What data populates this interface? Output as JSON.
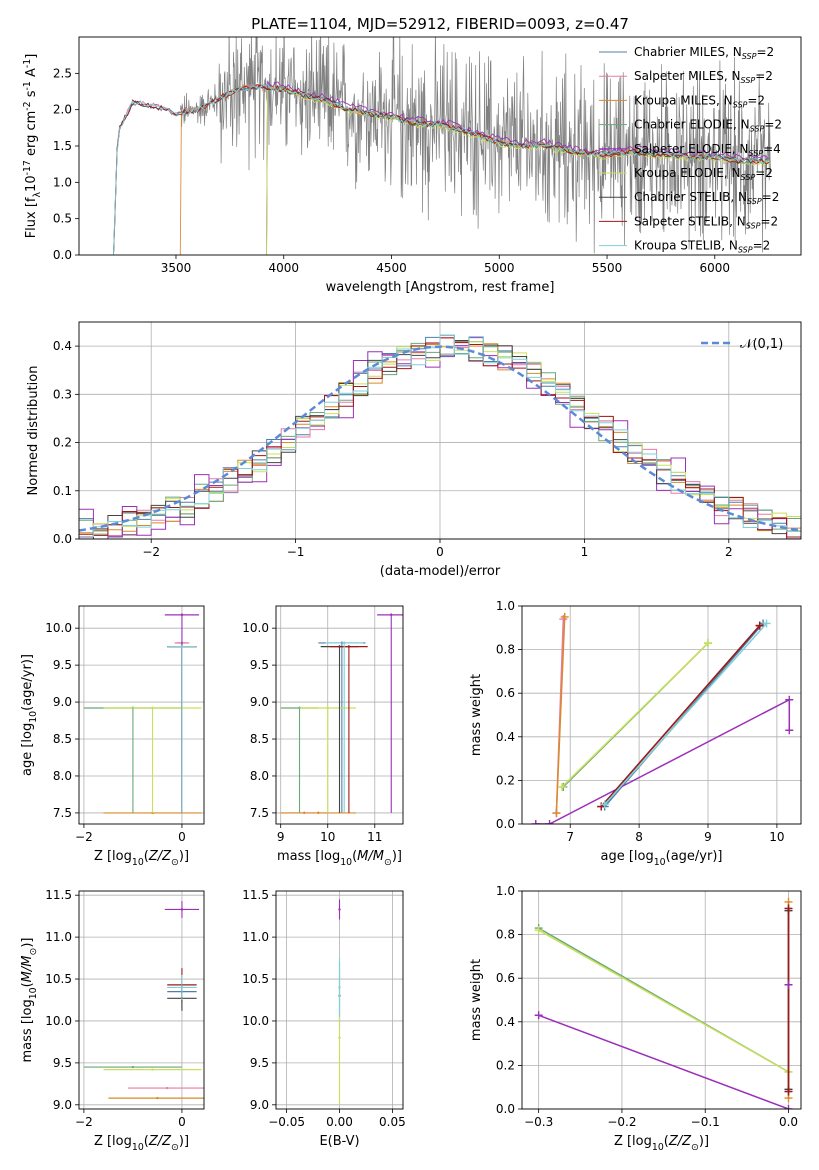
{
  "figure": {
    "title": "PLATE=1104, MJD=52912, FIBERID=0093, z=0.47"
  },
  "models": [
    {
      "name": "Chabrier MILES",
      "nssp": "2",
      "color": "#4f7fa8"
    },
    {
      "name": "Salpeter MILES",
      "nssp": "2",
      "color": "#e87aa8"
    },
    {
      "name": "Kroupa MILES",
      "nssp": "2",
      "color": "#d98a2a"
    },
    {
      "name": "Chabrier ELODIE",
      "nssp": "2",
      "color": "#6aa87a"
    },
    {
      "name": "Salpeter ELODIE",
      "nssp": "4",
      "color": "#9b30b8"
    },
    {
      "name": "Kroupa ELODIE",
      "nssp": "2",
      "color": "#c9e05a"
    },
    {
      "name": "Chabrier STELIB",
      "nssp": "2",
      "color": "#444444"
    },
    {
      "name": "Salpeter STELIB",
      "nssp": "2",
      "color": "#a01818"
    },
    {
      "name": "Kroupa STELIB",
      "nssp": "2",
      "color": "#7fd0d8"
    }
  ],
  "chart_data": [
    {
      "id": "spectrum",
      "type": "line",
      "xlabel": "wavelength [Angstrom, rest frame]",
      "ylabel": "Flux [f$_\\lambda$10$^{-17}$ erg cm$^{-2}$ s$^{-1}$ A$^{-1}$]",
      "xlim": [
        3050,
        6400
      ],
      "ylim": [
        0,
        3.0
      ],
      "xticks": [
        3500,
        4000,
        4500,
        5000,
        5500,
        6000
      ],
      "yticks": [
        0.0,
        0.5,
        1.0,
        1.5,
        2.0,
        2.5
      ],
      "legend": "top-right",
      "data_color": "#808080",
      "data_range": [
        3520,
        6260
      ],
      "model_start": [
        3210,
        3210,
        3520,
        3920,
        3920,
        3920,
        3210,
        3210,
        3210
      ],
      "continuum": {
        "x": [
          3210,
          3230,
          3300,
          3400,
          3500,
          3600,
          3700,
          3800,
          3900,
          4000,
          4100,
          4200,
          4300,
          4400,
          4500,
          4600,
          4700,
          4800,
          4900,
          5000,
          5100,
          5200,
          5300,
          5400,
          5500,
          5600,
          5700,
          5800,
          5900,
          6000,
          6100,
          6200,
          6260
        ],
        "y": [
          0.0,
          1.7,
          2.1,
          2.05,
          1.95,
          2.0,
          2.15,
          2.3,
          2.32,
          2.28,
          2.2,
          2.12,
          2.0,
          1.95,
          1.9,
          1.82,
          1.8,
          1.75,
          1.65,
          1.55,
          1.5,
          1.52,
          1.45,
          1.4,
          1.38,
          1.42,
          1.4,
          1.38,
          1.35,
          1.35,
          1.3,
          1.3,
          1.28
        ]
      }
    },
    {
      "id": "residuals",
      "type": "line",
      "xlabel": "(data-model)/error",
      "ylabel": "Normed distribution",
      "xlim": [
        -2.5,
        2.5
      ],
      "ylim": [
        0,
        0.45
      ],
      "xticks": [
        -2,
        -1,
        0,
        1,
        2
      ],
      "yticks": [
        0.0,
        0.1,
        0.2,
        0.3,
        0.4
      ],
      "legend_label": "$\\mathcal{N}(0,1)$",
      "gauss_color": "#5b8ad6",
      "grid": true
    },
    {
      "id": "age-Z",
      "type": "scatter",
      "xlabel": "Z [log$_{10}$($Z/Z_\\odot$)]",
      "ylabel": "age  [log$_{10}$($age/yr$)]",
      "xlim": [
        -2.1,
        0.45
      ],
      "ylim": [
        7.35,
        10.3
      ],
      "xticks": [
        -2,
        0
      ],
      "yticks": [
        7.5,
        8.0,
        8.5,
        9.0,
        9.5,
        10.0
      ],
      "grid": true,
      "points": [
        {
          "m": 0,
          "x": 0.0,
          "y": 9.8,
          "xerr": 0.1,
          "yerr": 0.03
        },
        {
          "m": 1,
          "x": 0.0,
          "y": 9.8,
          "xerr": 0.15,
          "yerr": 0.03
        },
        {
          "m": 2,
          "x": -0.6,
          "y": 7.5,
          "xerr": 1.0,
          "yerr": 0.0
        },
        {
          "m": 3,
          "x": -1.0,
          "y": 8.92,
          "xerr": 1.0,
          "yerr": 0.0
        },
        {
          "m": 4,
          "x": 0.0,
          "y": 10.18,
          "xerr": 0.35,
          "yerr": 0.0
        },
        {
          "m": 5,
          "x": -0.6,
          "y": 8.92,
          "xerr": 1.0,
          "yerr": 0.0
        },
        {
          "m": 6,
          "x": 0.0,
          "y": 9.75,
          "xerr": 0.3,
          "yerr": 0.0
        },
        {
          "m": 7,
          "x": 0.0,
          "y": 9.75,
          "xerr": 0.3,
          "yerr": 0.0
        },
        {
          "m": 8,
          "x": 0.0,
          "y": 9.75,
          "xerr": 0.3,
          "yerr": 0.0
        }
      ]
    },
    {
      "id": "age-mass",
      "type": "scatter",
      "xlabel": "mass [log$_{10}$($M/M_\\odot$)]",
      "xlim": [
        8.9,
        11.6
      ],
      "ylim": [
        7.35,
        10.3
      ],
      "xticks": [
        9,
        10,
        11
      ],
      "yticks": [
        7.5,
        8.0,
        8.5,
        9.0,
        9.5,
        10.0
      ],
      "grid": true,
      "points": [
        {
          "m": 0,
          "x": 10.3,
          "y": 9.8,
          "xerr": 0.5
        },
        {
          "m": 1,
          "x": 9.5,
          "y": 7.5,
          "xerr": 0.5
        },
        {
          "m": 2,
          "x": 9.8,
          "y": 7.5,
          "xerr": 0.8
        },
        {
          "m": 3,
          "x": 9.4,
          "y": 8.92,
          "xerr": 0.4
        },
        {
          "m": 4,
          "x": 11.35,
          "y": 10.18,
          "xerr": 0.3
        },
        {
          "m": 5,
          "x": 10.0,
          "y": 8.92,
          "xerr": 0.6
        },
        {
          "m": 6,
          "x": 10.25,
          "y": 9.75,
          "xerr": 0.4
        },
        {
          "m": 7,
          "x": 10.45,
          "y": 9.75,
          "xerr": 0.4
        },
        {
          "m": 8,
          "x": 10.35,
          "y": 9.8,
          "xerr": 0.4
        }
      ]
    },
    {
      "id": "weight-age",
      "type": "line",
      "xlabel": "age  [log$_{10}$($age/yr$)]",
      "ylabel": "mass weight",
      "xlim": [
        6.3,
        10.35
      ],
      "ylim": [
        0,
        1.0
      ],
      "xticks": [
        7,
        8,
        9,
        10
      ],
      "yticks": [
        0.0,
        0.2,
        0.4,
        0.6,
        0.8,
        1.0
      ],
      "grid": true,
      "series": [
        {
          "m": 0,
          "x": [
            7.5,
            9.8
          ],
          "y": [
            0.08,
            0.92
          ]
        },
        {
          "m": 1,
          "x": [
            6.8,
            6.9
          ],
          "y": [
            0.05,
            0.94
          ]
        },
        {
          "m": 2,
          "x": [
            6.8,
            6.92
          ],
          "y": [
            0.05,
            0.95
          ]
        },
        {
          "m": 3,
          "x": [
            6.9,
            9.0
          ],
          "y": [
            0.17,
            0.83
          ]
        },
        {
          "m": 4,
          "x": [
            6.5,
            6.7,
            10.18,
            10.18
          ],
          "y": [
            0.0,
            0.0,
            0.57,
            0.43
          ]
        },
        {
          "m": 5,
          "x": [
            6.88,
            9.0
          ],
          "y": [
            0.17,
            0.83
          ]
        },
        {
          "m": 6,
          "x": [
            7.45,
            9.75
          ],
          "y": [
            0.08,
            0.91
          ]
        },
        {
          "m": 7,
          "x": [
            7.45,
            9.75
          ],
          "y": [
            0.08,
            0.91
          ]
        },
        {
          "m": 8,
          "x": [
            7.5,
            9.85
          ],
          "y": [
            0.09,
            0.92
          ]
        }
      ]
    },
    {
      "id": "mass-Z",
      "type": "scatter",
      "xlabel": "Z [log$_{10}$($Z/Z_\\odot$)]",
      "ylabel": "mass [log$_{10}$($M/M_\\odot$)]",
      "xlim": [
        -2.1,
        0.45
      ],
      "ylim": [
        8.95,
        11.55
      ],
      "xticks": [
        -2,
        0
      ],
      "yticks": [
        9.0,
        9.5,
        10.0,
        10.5,
        11.0,
        11.5
      ],
      "grid": true,
      "points": [
        {
          "m": 0,
          "x": 0.0,
          "y": 10.35,
          "xerr": 0.3,
          "yerr": 0.2
        },
        {
          "m": 1,
          "x": -0.3,
          "y": 9.2,
          "xerr": 0.8,
          "yerr": 0.0
        },
        {
          "m": 2,
          "x": -0.5,
          "y": 9.08,
          "xerr": 1.0,
          "yerr": 0.0
        },
        {
          "m": 3,
          "x": -1.0,
          "y": 9.45,
          "xerr": 1.0,
          "yerr": 0.0
        },
        {
          "m": 4,
          "x": 0.0,
          "y": 11.33,
          "xerr": 0.35,
          "yerr": 0.1
        },
        {
          "m": 5,
          "x": -0.6,
          "y": 9.42,
          "xerr": 1.0,
          "yerr": 0.0
        },
        {
          "m": 6,
          "x": 0.0,
          "y": 10.27,
          "xerr": 0.3,
          "yerr": 0.15
        },
        {
          "m": 7,
          "x": 0.0,
          "y": 10.43,
          "xerr": 0.3,
          "yerr": 0.2
        },
        {
          "m": 8,
          "x": 0.0,
          "y": 10.4,
          "xerr": 0.3,
          "yerr": 0.15
        }
      ]
    },
    {
      "id": "mass-ebv",
      "type": "scatter",
      "xlabel": "E(B-V)",
      "xlim": [
        -0.06,
        0.06
      ],
      "ylim": [
        8.95,
        11.55
      ],
      "xticks": [
        -0.05,
        0.0,
        0.05
      ],
      "yticks": [
        9.0,
        9.5,
        10.0,
        10.5,
        11.0,
        11.5
      ],
      "grid": true,
      "points": [
        {
          "m": 0,
          "x": 0.0,
          "y": 10.3,
          "yerr": 0.4
        },
        {
          "m": 4,
          "x": 0.0,
          "y": 11.33,
          "yerr": 0.12
        },
        {
          "m": 5,
          "x": 0.0,
          "y": 9.8,
          "yerr": 0.8
        },
        {
          "m": 8,
          "x": 0.0,
          "y": 10.4,
          "yerr": 0.35
        }
      ]
    },
    {
      "id": "weight-Z",
      "type": "line",
      "xlabel": "Z [log$_{10}$($Z/Z_\\odot$)]",
      "ylabel": "mass weight",
      "xlim": [
        -0.32,
        0.015
      ],
      "ylim": [
        0,
        1.0
      ],
      "xticks": [
        -0.3,
        -0.2,
        -0.1,
        0.0
      ],
      "yticks": [
        0.0,
        0.2,
        0.4,
        0.6,
        0.8,
        1.0
      ],
      "grid": true,
      "series": [
        {
          "m": 3,
          "x": [
            -0.3,
            0.0
          ],
          "y": [
            0.83,
            0.17
          ]
        },
        {
          "m": 5,
          "x": [
            -0.3,
            0.0
          ],
          "y": [
            0.82,
            0.17
          ]
        },
        {
          "m": 4,
          "x": [
            -0.3,
            0.0
          ],
          "y": [
            0.43,
            0.0
          ]
        },
        {
          "m": 8,
          "x": [
            0.0,
            0.0
          ],
          "y": [
            0.08,
            0.92
          ]
        },
        {
          "m": 2,
          "x": [
            0.0,
            0.0
          ],
          "y": [
            0.05,
            0.95
          ]
        },
        {
          "m": 6,
          "x": [
            0.0,
            0.0
          ],
          "y": [
            0.09,
            0.91
          ]
        },
        {
          "m": 7,
          "x": [
            0.0,
            0.0
          ],
          "y": [
            0.08,
            0.92
          ]
        },
        {
          "m": 4,
          "x": [
            0.0,
            0.0
          ],
          "y": [
            0.57,
            0.57
          ]
        }
      ]
    }
  ]
}
